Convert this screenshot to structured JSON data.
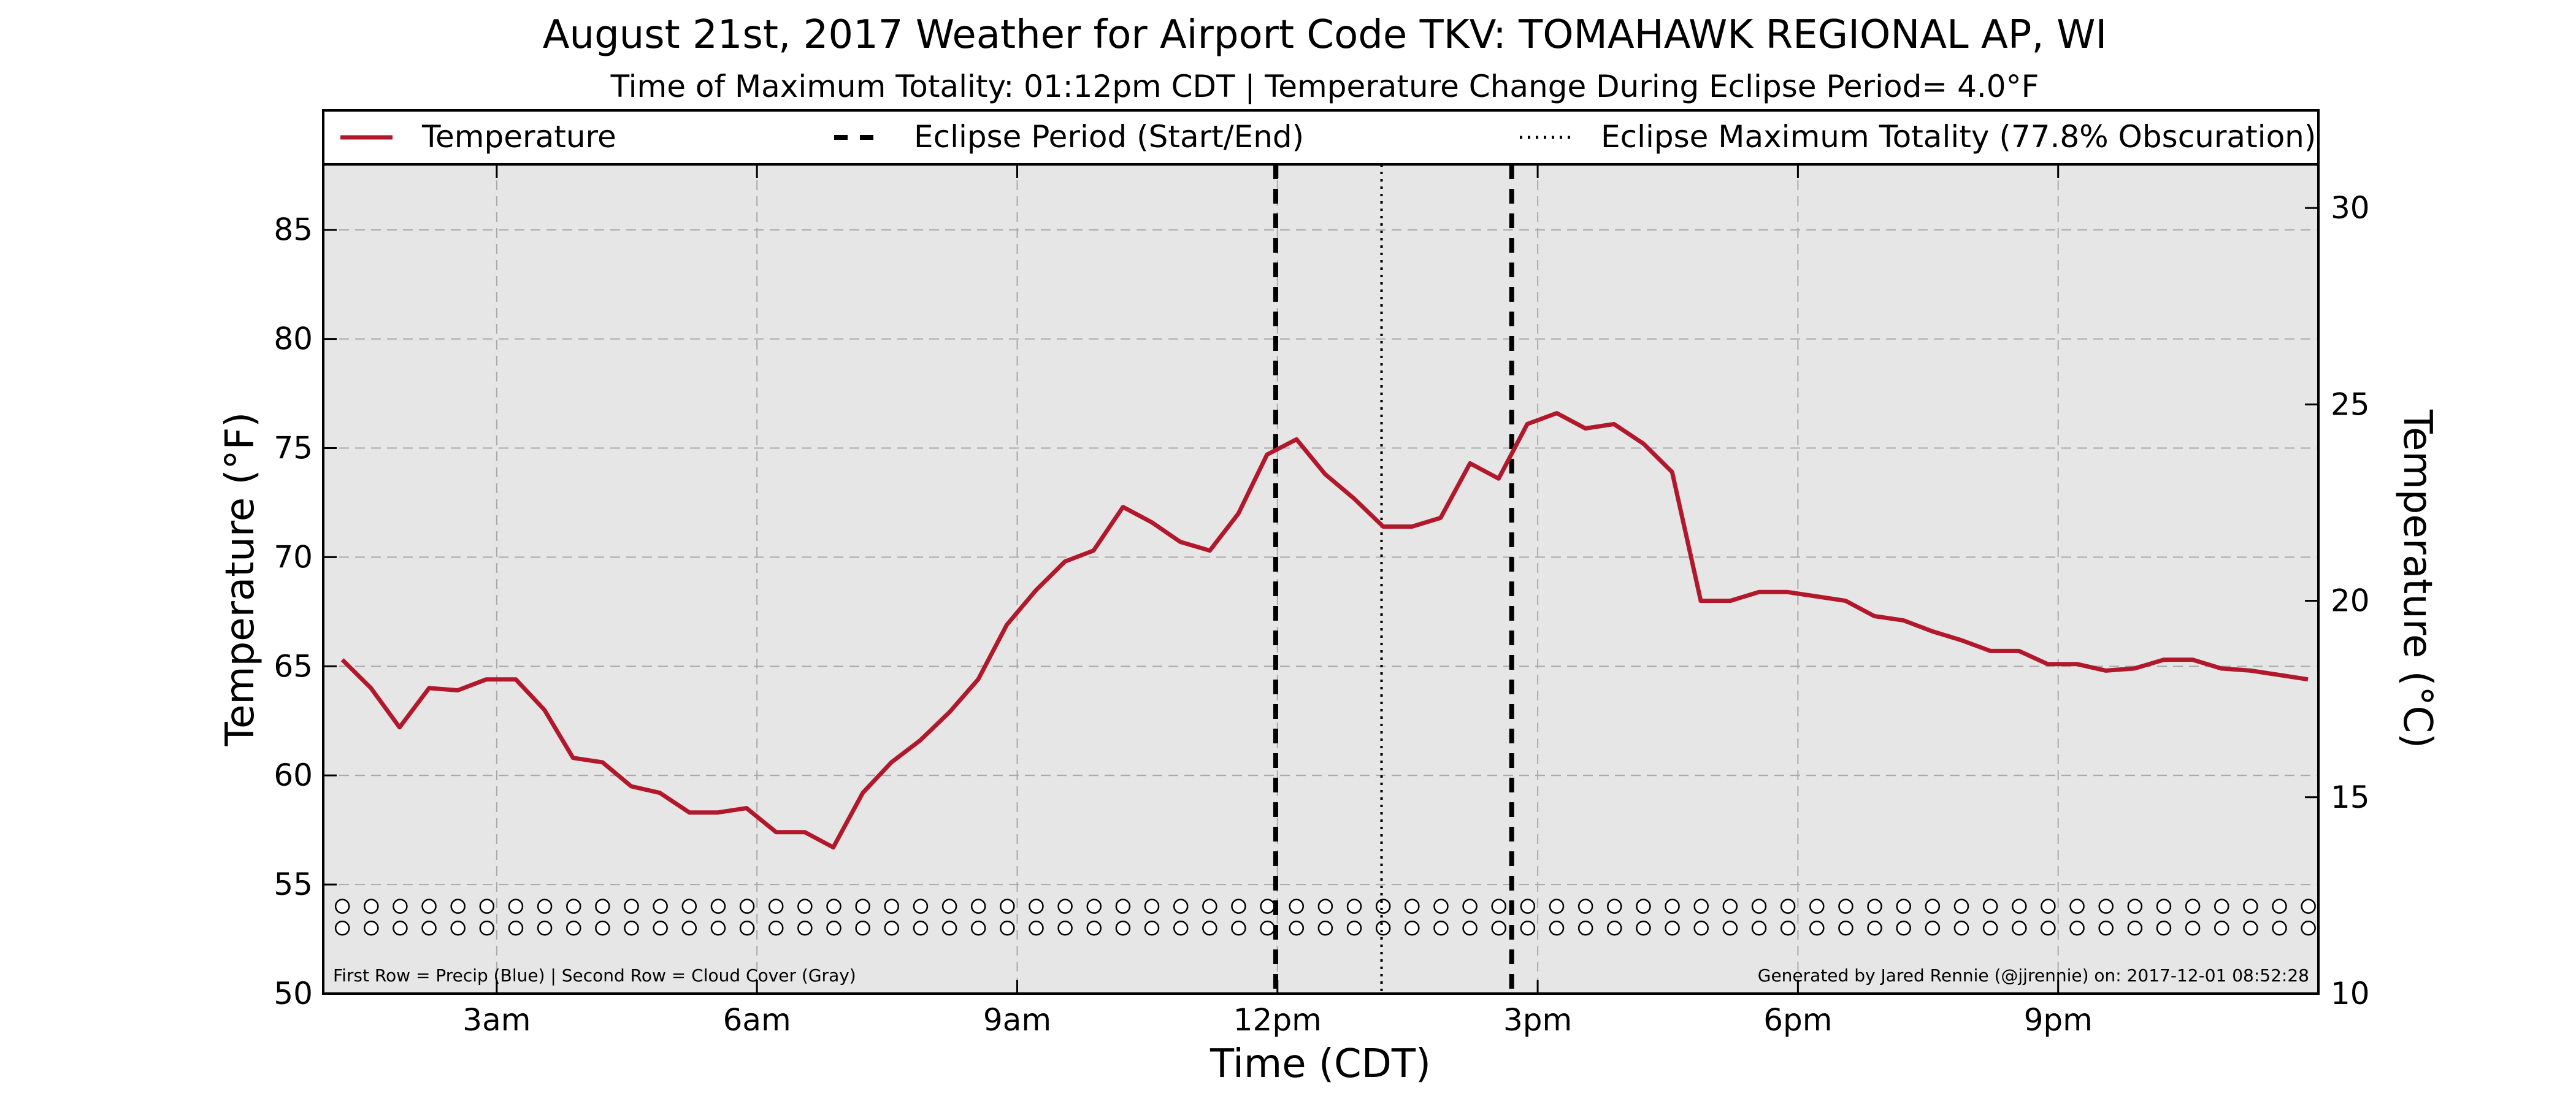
{
  "chart_data": {
    "type": "line",
    "title": "August 21st, 2017 Weather for Airport Code TKV: TOMAHAWK REGIONAL AP, WI",
    "subtitle": "Time of Maximum Totality: 01:12pm CDT | Temperature Change During Eclipse Period= 4.0°F",
    "xlabel": "Time (CDT)",
    "ylabel": "Temperature (°F)",
    "ylabel_right": "Temperature (°C)",
    "xlim": [
      1.0,
      24.0
    ],
    "ylim": [
      50,
      88
    ],
    "ylim_right": [
      10,
      31.11
    ],
    "grid": true,
    "legend_position": "top",
    "x_ticks": [
      {
        "value": 3,
        "label": "3am"
      },
      {
        "value": 6,
        "label": "6am"
      },
      {
        "value": 9,
        "label": "9am"
      },
      {
        "value": 12,
        "label": "12pm"
      },
      {
        "value": 15,
        "label": "3pm"
      },
      {
        "value": 18,
        "label": "6pm"
      },
      {
        "value": 21,
        "label": "9pm"
      }
    ],
    "y_ticks": [
      50,
      55,
      60,
      65,
      70,
      75,
      80,
      85
    ],
    "y_ticks_right": [
      10,
      15,
      20,
      25,
      30
    ],
    "legend": [
      {
        "label": "Temperature",
        "style": "solid",
        "color": "#b2182b"
      },
      {
        "label": "Eclipse Period (Start/End)",
        "style": "dashed",
        "color": "#000000"
      },
      {
        "label": "Eclipse Maximum Totality (77.8% Obscuration)",
        "style": "dotted",
        "color": "#000000"
      }
    ],
    "series": [
      {
        "name": "Temperature",
        "color": "#b2182b",
        "x": [
          1.22,
          1.55,
          1.88,
          2.22,
          2.55,
          2.88,
          3.22,
          3.55,
          3.88,
          4.22,
          4.55,
          4.88,
          5.22,
          5.55,
          5.88,
          6.22,
          6.55,
          6.88,
          7.22,
          7.55,
          7.88,
          8.22,
          8.55,
          8.88,
          9.22,
          9.55,
          9.88,
          10.22,
          10.55,
          10.88,
          11.22,
          11.55,
          11.88,
          12.22,
          12.55,
          12.88,
          13.22,
          13.55,
          13.88,
          14.22,
          14.55,
          14.88,
          15.22,
          15.55,
          15.88,
          16.22,
          16.55,
          16.88,
          17.22,
          17.55,
          17.88,
          18.22,
          18.55,
          18.88,
          19.22,
          19.55,
          19.88,
          20.22,
          20.55,
          20.88,
          21.22,
          21.55,
          21.88,
          22.22,
          22.55,
          22.88,
          23.22,
          23.55,
          23.88
        ],
        "y": [
          65.3,
          64.0,
          62.2,
          64.0,
          63.9,
          64.4,
          64.4,
          63.0,
          60.8,
          60.6,
          59.5,
          59.2,
          58.3,
          58.3,
          58.5,
          57.4,
          57.4,
          56.7,
          59.2,
          60.6,
          61.6,
          62.9,
          64.4,
          66.9,
          68.5,
          69.8,
          70.3,
          72.3,
          71.6,
          70.7,
          70.3,
          72.0,
          74.7,
          75.4,
          73.8,
          72.7,
          71.4,
          71.4,
          71.8,
          74.3,
          73.6,
          76.1,
          76.6,
          75.9,
          76.1,
          75.2,
          73.9,
          68.0,
          68.0,
          68.4,
          68.4,
          68.2,
          68.0,
          67.3,
          67.1,
          66.6,
          66.2,
          65.7,
          65.7,
          65.1,
          65.1,
          64.8,
          64.9,
          65.3,
          65.3,
          64.9,
          64.8,
          64.6,
          64.4
        ]
      }
    ],
    "eclipse_start": 11.98,
    "eclipse_max": 13.2,
    "eclipse_end": 14.7,
    "marker_rows": [
      {
        "name": "Precip (Blue)",
        "value": 54.0
      },
      {
        "name": "Cloud Cover (Gray)",
        "value": 53.0
      }
    ],
    "marker_x_start": 1.22,
    "marker_x_step": 0.3333,
    "marker_count": 69,
    "footer_left": "First Row = Precip (Blue) | Second Row = Cloud Cover (Gray)",
    "footer_right": "Generated by Jared Rennie (@jjrennie) on: 2017-12-01 08:52:28"
  }
}
